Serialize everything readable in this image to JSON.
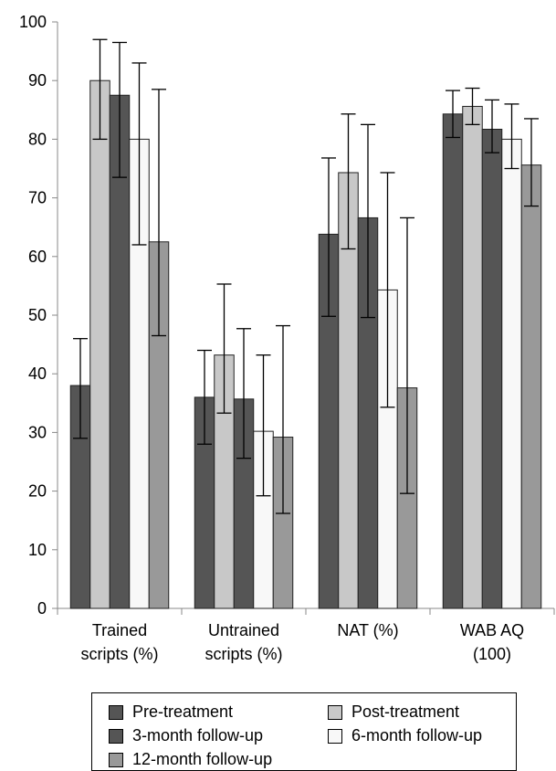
{
  "chart_data": {
    "type": "bar",
    "categories": [
      [
        "Trained",
        "scripts (%)"
      ],
      [
        "Untrained",
        "scripts (%)"
      ],
      [
        "NAT (%)"
      ],
      [
        "WAB AQ",
        "(100)"
      ]
    ],
    "series": [
      {
        "name": "Pre-treatment",
        "color": "#555555",
        "values": [
          38,
          36,
          63.8,
          84.3
        ],
        "err_low": [
          29,
          28,
          49.8,
          80.3
        ],
        "err_high": [
          46,
          44,
          76.8,
          88.3
        ]
      },
      {
        "name": "Post-treatment",
        "color": "#c8c8c8",
        "values": [
          90,
          43.2,
          74.3,
          85.6
        ],
        "err_low": [
          80,
          33.3,
          61.3,
          82.5
        ],
        "err_high": [
          97,
          55.3,
          84.3,
          88.7
        ]
      },
      {
        "name": "3-month follow-up",
        "color": "#555555",
        "values": [
          87.5,
          35.7,
          66.6,
          81.7
        ],
        "err_low": [
          73.5,
          25.6,
          49.6,
          77.7
        ],
        "err_high": [
          96.5,
          47.7,
          82.5,
          86.7
        ]
      },
      {
        "name": "6-month follow-up",
        "color": "#f8f8f8",
        "values": [
          80,
          30.2,
          54.3,
          80
        ],
        "err_low": [
          62,
          19.2,
          34.3,
          75
        ],
        "err_high": [
          93,
          43.2,
          74.3,
          86
        ]
      },
      {
        "name": "12-month follow-up",
        "color": "#999999",
        "values": [
          62.5,
          29.2,
          37.6,
          75.6
        ],
        "err_low": [
          46.5,
          16.2,
          19.6,
          68.6
        ],
        "err_high": [
          88.5,
          48.2,
          66.6,
          83.5
        ]
      }
    ],
    "ylim": [
      0,
      100
    ],
    "yticks": [
      0,
      10,
      20,
      30,
      40,
      50,
      60,
      70,
      80,
      90,
      100
    ],
    "grid": false,
    "legend_position": "bottom"
  }
}
